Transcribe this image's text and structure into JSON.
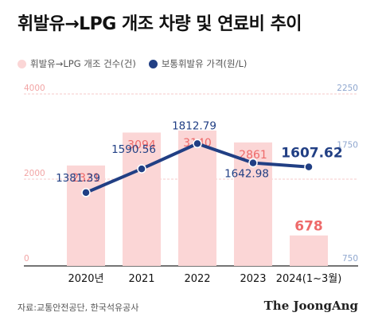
{
  "title": "휘발유→LPG 개조 차량 및 연료비 추이",
  "legend": {
    "bars_label": "휘발유→LPG 개조 건수(건)",
    "line_label": "보통휘발유 가격(원/L)"
  },
  "source": "자료:교통안전공단, 한국석유공사",
  "brand": "The JoongAng",
  "colors": {
    "bar": "#fbd6d6",
    "bar_label": "#ee6a6a",
    "line": "#213f84",
    "line_label": "#213f84",
    "grid": "#f6c9c9",
    "axis_left": "#f2a5a5",
    "axis_right": "#8fa7cf"
  },
  "chart_data": {
    "type": "bar+line",
    "categories": [
      "2020년",
      "2021",
      "2022",
      "2023",
      "2024(1~3월)"
    ],
    "bar_series": {
      "name": "휘발유→LPG 개조 건수(건)",
      "values": [
        2321,
        3094,
        3140,
        2861,
        678
      ],
      "labels": [
        "2321",
        "3094",
        "3140",
        "2861",
        "678"
      ],
      "y_axis": {
        "min": 0,
        "max": 4000,
        "ticks": [
          "0",
          "2000",
          "4000"
        ]
      }
    },
    "line_series": {
      "name": "보통휘발유 가격(원/L)",
      "values": [
        1381.39,
        1590.56,
        1812.79,
        1642.98,
        1607.62
      ],
      "labels": [
        "1381.39",
        "1590.56",
        "1812.79",
        "1642.98",
        "1607.62"
      ],
      "y_axis": {
        "min": 750,
        "max": 2250,
        "ticks": [
          "750",
          "1750",
          "2250"
        ]
      }
    },
    "grid": true
  }
}
